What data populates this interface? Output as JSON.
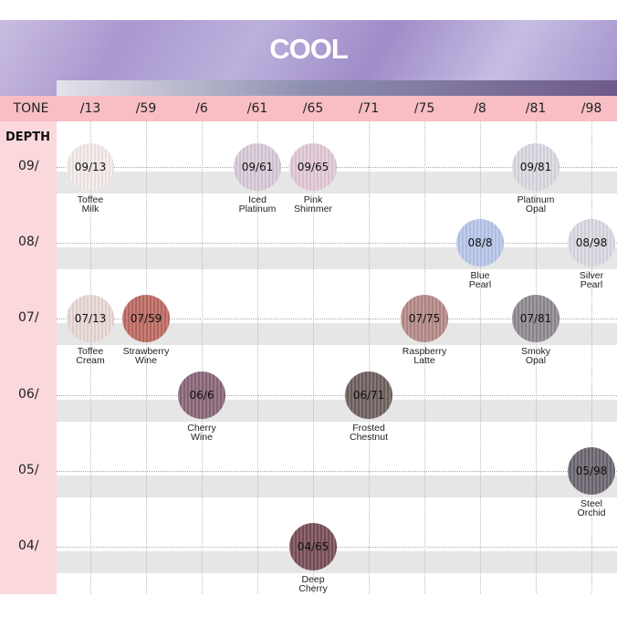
{
  "chart_data": {
    "type": "table",
    "title": "COOL",
    "row_header": "DEPTH",
    "col_header": "TONE",
    "tones": [
      "/13",
      "/59",
      "/6",
      "/61",
      "/65",
      "/71",
      "/75",
      "/8",
      "/81",
      "/98"
    ],
    "depths": [
      "09/",
      "08/",
      "07/",
      "06/",
      "05/",
      "04/"
    ],
    "swatches": [
      {
        "code": "09/13",
        "name": [
          "Toffee",
          "Milk"
        ],
        "depth": "09/",
        "tone": "/13",
        "color": "#f3ebea"
      },
      {
        "code": "09/61",
        "name": [
          "Iced",
          "Platinum"
        ],
        "depth": "09/",
        "tone": "/61",
        "color": "#d8cad8"
      },
      {
        "code": "09/65",
        "name": [
          "Pink",
          "Shimmer"
        ],
        "depth": "09/",
        "tone": "/65",
        "color": "#e2c9d6"
      },
      {
        "code": "09/81",
        "name": [
          "Platinum",
          "Opal"
        ],
        "depth": "09/",
        "tone": "/81",
        "color": "#d9d9e2"
      },
      {
        "code": "08/8",
        "name": [
          "Blue",
          "Pearl"
        ],
        "depth": "08/",
        "tone": "/8",
        "color": "#b8c6ea"
      },
      {
        "code": "08/98",
        "name": [
          "Silver",
          "Pearl"
        ],
        "depth": "08/",
        "tone": "/98",
        "color": "#dcd8e2"
      },
      {
        "code": "07/13",
        "name": [
          "Toffee",
          "Cream"
        ],
        "depth": "07/",
        "tone": "/13",
        "color": "#e8d8d5"
      },
      {
        "code": "07/59",
        "name": [
          "Strawberry",
          "Wine"
        ],
        "depth": "07/",
        "tone": "/59",
        "color": "#bd6a62"
      },
      {
        "code": "07/75",
        "name": [
          "Raspberry",
          "Latte"
        ],
        "depth": "07/",
        "tone": "/75",
        "color": "#b48a88"
      },
      {
        "code": "07/81",
        "name": [
          "Smoky",
          "Opal"
        ],
        "depth": "07/",
        "tone": "/81",
        "color": "#8f8a92"
      },
      {
        "code": "06/6",
        "name": [
          "Cherry",
          "Wine"
        ],
        "depth": "06/",
        "tone": "/6",
        "color": "#8a6678"
      },
      {
        "code": "06/71",
        "name": [
          "Frosted",
          "Chestnut"
        ],
        "depth": "06/",
        "tone": "/71",
        "color": "#6f605e"
      },
      {
        "code": "05/98",
        "name": [
          "Steel",
          "Orchid"
        ],
        "depth": "05/",
        "tone": "/98",
        "color": "#6c6670"
      },
      {
        "code": "04/65",
        "name": [
          "Deep",
          "Cherry"
        ],
        "depth": "04/",
        "tone": "/65",
        "color": "#7a4e58"
      }
    ]
  }
}
